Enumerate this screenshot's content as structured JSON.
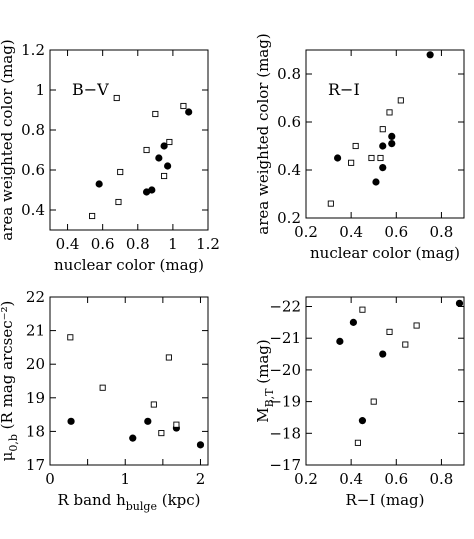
{
  "chart_data": [
    {
      "type": "scatter",
      "panel_label": "B−V",
      "xlabel": "nuclear color (mag)",
      "ylabel": "area weighted color (mag)",
      "xlim": [
        0.3,
        1.2
      ],
      "ylim": [
        0.3,
        1.2
      ],
      "xticks": [
        0.4,
        0.6,
        0.8,
        1.0,
        1.2
      ],
      "xticklabels": [
        "0.4",
        "0.6",
        "0.8",
        "1",
        "1.2"
      ],
      "yticks": [
        0.4,
        0.6,
        0.8,
        1.0,
        1.2
      ],
      "yticklabels": [
        "0.4",
        "0.6",
        "0.8",
        "1",
        "1.2"
      ],
      "series": [
        {
          "marker": "filled-circle",
          "points": [
            [
              0.58,
              0.53
            ],
            [
              0.85,
              0.49
            ],
            [
              0.88,
              0.5
            ],
            [
              0.92,
              0.66
            ],
            [
              0.95,
              0.72
            ],
            [
              0.97,
              0.62
            ],
            [
              1.09,
              0.89
            ]
          ]
        },
        {
          "marker": "open-square",
          "points": [
            [
              0.54,
              0.37
            ],
            [
              0.69,
              0.44
            ],
            [
              0.7,
              0.59
            ],
            [
              0.68,
              0.96
            ],
            [
              0.85,
              0.7
            ],
            [
              0.9,
              0.88
            ],
            [
              0.95,
              0.57
            ],
            [
              0.98,
              0.74
            ],
            [
              1.06,
              0.92
            ]
          ]
        }
      ]
    },
    {
      "type": "scatter",
      "panel_label": "R−I",
      "xlabel": "nuclear color (mag)",
      "ylabel": "area weighted color (mag)",
      "xlim": [
        0.2,
        0.9
      ],
      "ylim": [
        0.2,
        0.9
      ],
      "xticks": [
        0.2,
        0.4,
        0.6,
        0.8
      ],
      "xticklabels": [
        "0.2",
        "0.4",
        "0.6",
        "0.8"
      ],
      "yticks": [
        0.2,
        0.4,
        0.6,
        0.8
      ],
      "yticklabels": [
        "0.2",
        "0.4",
        "0.6",
        "0.8"
      ],
      "series": [
        {
          "marker": "filled-circle",
          "points": [
            [
              0.34,
              0.45
            ],
            [
              0.51,
              0.35
            ],
            [
              0.54,
              0.41
            ],
            [
              0.54,
              0.5
            ],
            [
              0.58,
              0.51
            ],
            [
              0.58,
              0.54
            ],
            [
              0.75,
              0.88
            ]
          ]
        },
        {
          "marker": "open-square",
          "points": [
            [
              0.31,
              0.26
            ],
            [
              0.4,
              0.43
            ],
            [
              0.42,
              0.5
            ],
            [
              0.49,
              0.45
            ],
            [
              0.53,
              0.45
            ],
            [
              0.54,
              0.57
            ],
            [
              0.57,
              0.64
            ],
            [
              0.62,
              0.69
            ]
          ]
        }
      ]
    },
    {
      "type": "scatter",
      "xlabel_main": "R band h",
      "xlabel_sub": "bulge",
      "xlabel_tail": " (kpc)",
      "ylabel_mu": "μ",
      "ylabel_sub": "0,b",
      "ylabel_tail": " (R mag arcsec⁻²)",
      "xlim": [
        0,
        2.1
      ],
      "ylim": [
        17,
        22
      ],
      "xticks": [
        0,
        0.5,
        1,
        1.5,
        2
      ],
      "xticklabels": [
        "0",
        "",
        "1",
        "",
        "2"
      ],
      "yticks": [
        17,
        18,
        19,
        20,
        21,
        22
      ],
      "yticklabels": [
        "17",
        "18",
        "19",
        "20",
        "21",
        "22"
      ],
      "series": [
        {
          "marker": "filled-circle",
          "points": [
            [
              0.28,
              18.3
            ],
            [
              1.1,
              17.8
            ],
            [
              1.3,
              18.3
            ],
            [
              1.68,
              18.1
            ],
            [
              2.0,
              17.6
            ]
          ]
        },
        {
          "marker": "open-square",
          "points": [
            [
              0.27,
              20.8
            ],
            [
              0.7,
              19.3
            ],
            [
              1.38,
              18.8
            ],
            [
              1.48,
              17.95
            ],
            [
              1.58,
              20.2
            ],
            [
              1.68,
              18.2
            ]
          ]
        }
      ]
    },
    {
      "type": "scatter",
      "xlabel": "R−I (mag)",
      "ylabel_main": "M",
      "ylabel_sub": "B,T",
      "ylabel_tail": " (mag)",
      "xlim": [
        0.2,
        0.9
      ],
      "ylim": [
        -17,
        -22.3
      ],
      "xticks": [
        0.2,
        0.4,
        0.6,
        0.8
      ],
      "xticklabels": [
        "0.2",
        "0.4",
        "0.6",
        "0.8"
      ],
      "yticks": [
        -17,
        -18,
        -19,
        -20,
        -21,
        -22
      ],
      "yticklabels": [
        "−17",
        "−18",
        "−19",
        "−20",
        "−21",
        "−22"
      ],
      "series": [
        {
          "marker": "filled-circle",
          "points": [
            [
              0.35,
              -20.9
            ],
            [
              0.41,
              -21.5
            ],
            [
              0.45,
              -18.4
            ],
            [
              0.54,
              -20.5
            ],
            [
              0.88,
              -22.1
            ]
          ]
        },
        {
          "marker": "open-square",
          "points": [
            [
              0.43,
              -17.7
            ],
            [
              0.45,
              -21.9
            ],
            [
              0.5,
              -19.0
            ],
            [
              0.57,
              -21.2
            ],
            [
              0.64,
              -20.8
            ],
            [
              0.69,
              -21.4
            ]
          ]
        }
      ]
    }
  ]
}
